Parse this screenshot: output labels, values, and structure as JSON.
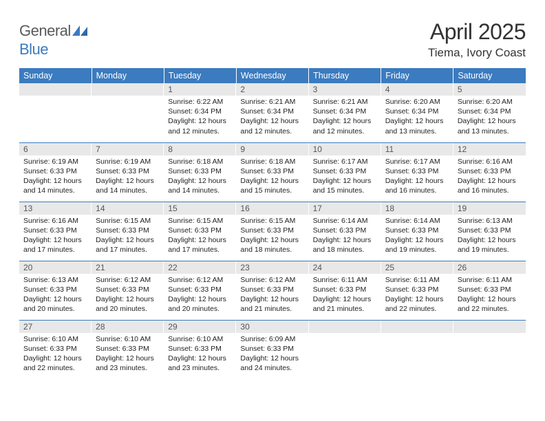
{
  "brand": {
    "part1": "General",
    "part2": "Blue"
  },
  "title": "April 2025",
  "location": "Tiema, Ivory Coast",
  "colors": {
    "header_bg": "#3b7bbf",
    "header_text": "#ffffff",
    "daynum_bg": "#e8e8e8",
    "row_divider": "#3b7bbf",
    "body_text": "#222222",
    "logo_gray": "#58595b",
    "logo_blue": "#3b7bbf"
  },
  "typography": {
    "title_fontsize": 32,
    "location_fontsize": 17,
    "header_fontsize": 12.5,
    "daynum_fontsize": 12,
    "body_fontsize": 10.5
  },
  "calendar": {
    "type": "table",
    "columns": [
      "Sunday",
      "Monday",
      "Tuesday",
      "Wednesday",
      "Thursday",
      "Friday",
      "Saturday"
    ],
    "weeks": [
      [
        {
          "empty": true
        },
        {
          "empty": true
        },
        {
          "day": "1",
          "sunrise": "Sunrise: 6:22 AM",
          "sunset": "Sunset: 6:34 PM",
          "daylight": "Daylight: 12 hours and 12 minutes."
        },
        {
          "day": "2",
          "sunrise": "Sunrise: 6:21 AM",
          "sunset": "Sunset: 6:34 PM",
          "daylight": "Daylight: 12 hours and 12 minutes."
        },
        {
          "day": "3",
          "sunrise": "Sunrise: 6:21 AM",
          "sunset": "Sunset: 6:34 PM",
          "daylight": "Daylight: 12 hours and 12 minutes."
        },
        {
          "day": "4",
          "sunrise": "Sunrise: 6:20 AM",
          "sunset": "Sunset: 6:34 PM",
          "daylight": "Daylight: 12 hours and 13 minutes."
        },
        {
          "day": "5",
          "sunrise": "Sunrise: 6:20 AM",
          "sunset": "Sunset: 6:34 PM",
          "daylight": "Daylight: 12 hours and 13 minutes."
        }
      ],
      [
        {
          "day": "6",
          "sunrise": "Sunrise: 6:19 AM",
          "sunset": "Sunset: 6:33 PM",
          "daylight": "Daylight: 12 hours and 14 minutes."
        },
        {
          "day": "7",
          "sunrise": "Sunrise: 6:19 AM",
          "sunset": "Sunset: 6:33 PM",
          "daylight": "Daylight: 12 hours and 14 minutes."
        },
        {
          "day": "8",
          "sunrise": "Sunrise: 6:18 AM",
          "sunset": "Sunset: 6:33 PM",
          "daylight": "Daylight: 12 hours and 14 minutes."
        },
        {
          "day": "9",
          "sunrise": "Sunrise: 6:18 AM",
          "sunset": "Sunset: 6:33 PM",
          "daylight": "Daylight: 12 hours and 15 minutes."
        },
        {
          "day": "10",
          "sunrise": "Sunrise: 6:17 AM",
          "sunset": "Sunset: 6:33 PM",
          "daylight": "Daylight: 12 hours and 15 minutes."
        },
        {
          "day": "11",
          "sunrise": "Sunrise: 6:17 AM",
          "sunset": "Sunset: 6:33 PM",
          "daylight": "Daylight: 12 hours and 16 minutes."
        },
        {
          "day": "12",
          "sunrise": "Sunrise: 6:16 AM",
          "sunset": "Sunset: 6:33 PM",
          "daylight": "Daylight: 12 hours and 16 minutes."
        }
      ],
      [
        {
          "day": "13",
          "sunrise": "Sunrise: 6:16 AM",
          "sunset": "Sunset: 6:33 PM",
          "daylight": "Daylight: 12 hours and 17 minutes."
        },
        {
          "day": "14",
          "sunrise": "Sunrise: 6:15 AM",
          "sunset": "Sunset: 6:33 PM",
          "daylight": "Daylight: 12 hours and 17 minutes."
        },
        {
          "day": "15",
          "sunrise": "Sunrise: 6:15 AM",
          "sunset": "Sunset: 6:33 PM",
          "daylight": "Daylight: 12 hours and 17 minutes."
        },
        {
          "day": "16",
          "sunrise": "Sunrise: 6:15 AM",
          "sunset": "Sunset: 6:33 PM",
          "daylight": "Daylight: 12 hours and 18 minutes."
        },
        {
          "day": "17",
          "sunrise": "Sunrise: 6:14 AM",
          "sunset": "Sunset: 6:33 PM",
          "daylight": "Daylight: 12 hours and 18 minutes."
        },
        {
          "day": "18",
          "sunrise": "Sunrise: 6:14 AM",
          "sunset": "Sunset: 6:33 PM",
          "daylight": "Daylight: 12 hours and 19 minutes."
        },
        {
          "day": "19",
          "sunrise": "Sunrise: 6:13 AM",
          "sunset": "Sunset: 6:33 PM",
          "daylight": "Daylight: 12 hours and 19 minutes."
        }
      ],
      [
        {
          "day": "20",
          "sunrise": "Sunrise: 6:13 AM",
          "sunset": "Sunset: 6:33 PM",
          "daylight": "Daylight: 12 hours and 20 minutes."
        },
        {
          "day": "21",
          "sunrise": "Sunrise: 6:12 AM",
          "sunset": "Sunset: 6:33 PM",
          "daylight": "Daylight: 12 hours and 20 minutes."
        },
        {
          "day": "22",
          "sunrise": "Sunrise: 6:12 AM",
          "sunset": "Sunset: 6:33 PM",
          "daylight": "Daylight: 12 hours and 20 minutes."
        },
        {
          "day": "23",
          "sunrise": "Sunrise: 6:12 AM",
          "sunset": "Sunset: 6:33 PM",
          "daylight": "Daylight: 12 hours and 21 minutes."
        },
        {
          "day": "24",
          "sunrise": "Sunrise: 6:11 AM",
          "sunset": "Sunset: 6:33 PM",
          "daylight": "Daylight: 12 hours and 21 minutes."
        },
        {
          "day": "25",
          "sunrise": "Sunrise: 6:11 AM",
          "sunset": "Sunset: 6:33 PM",
          "daylight": "Daylight: 12 hours and 22 minutes."
        },
        {
          "day": "26",
          "sunrise": "Sunrise: 6:11 AM",
          "sunset": "Sunset: 6:33 PM",
          "daylight": "Daylight: 12 hours and 22 minutes."
        }
      ],
      [
        {
          "day": "27",
          "sunrise": "Sunrise: 6:10 AM",
          "sunset": "Sunset: 6:33 PM",
          "daylight": "Daylight: 12 hours and 22 minutes."
        },
        {
          "day": "28",
          "sunrise": "Sunrise: 6:10 AM",
          "sunset": "Sunset: 6:33 PM",
          "daylight": "Daylight: 12 hours and 23 minutes."
        },
        {
          "day": "29",
          "sunrise": "Sunrise: 6:10 AM",
          "sunset": "Sunset: 6:33 PM",
          "daylight": "Daylight: 12 hours and 23 minutes."
        },
        {
          "day": "30",
          "sunrise": "Sunrise: 6:09 AM",
          "sunset": "Sunset: 6:33 PM",
          "daylight": "Daylight: 12 hours and 24 minutes."
        },
        {
          "empty": true
        },
        {
          "empty": true
        },
        {
          "empty": true
        }
      ]
    ]
  }
}
